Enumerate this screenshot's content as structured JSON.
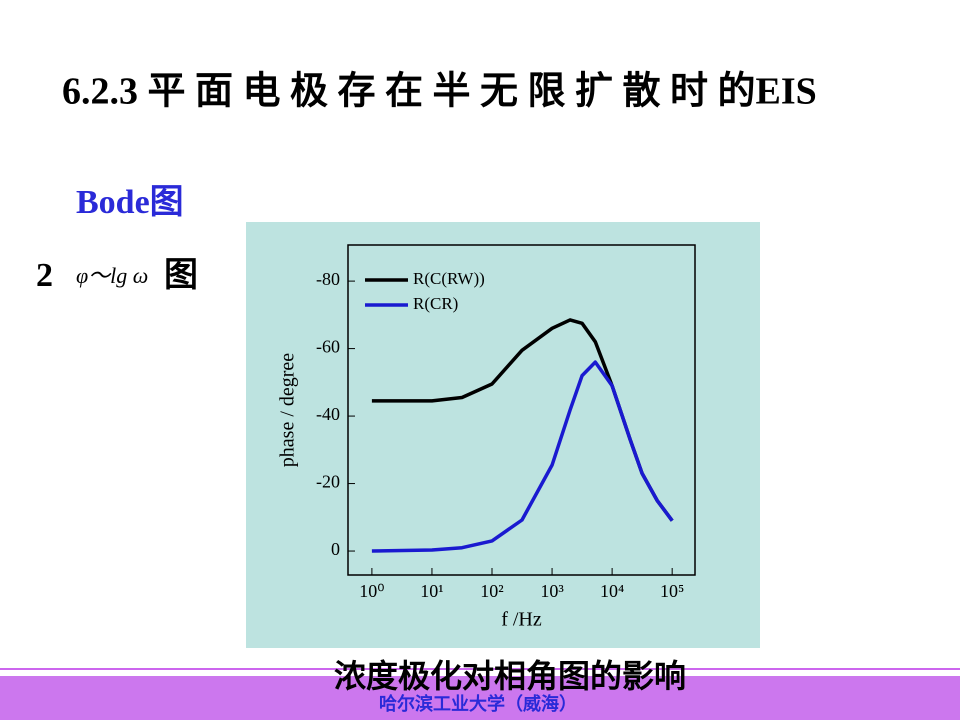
{
  "slide": {
    "title": "6.2.3 平 面 电 极 存 在 半 无 限 扩 散 时 的EIS",
    "subtitle": "Bode图",
    "item_number": "2",
    "item_formula": "φ～lg ω",
    "item_suffix": "图",
    "caption": "浓度极化对相角图的影响",
    "footer": "哈尔滨工业大学（威海）"
  },
  "chart_data": {
    "type": "line",
    "xlabel": "f /Hz",
    "ylabel": "phase / degree",
    "xscale": "log",
    "x": [
      1,
      10,
      31.6,
      100,
      316,
      1000,
      2000,
      3160,
      5250,
      10000,
      20000,
      31600,
      56200,
      100000
    ],
    "series": [
      {
        "name": "R(C(RW))",
        "color": "#000000",
        "values": [
          -44.5,
          -44.5,
          -45.5,
          -49.5,
          -59.5,
          -66,
          -68.5,
          -67.5,
          -62,
          -49,
          -33,
          -23,
          -15,
          -9
        ]
      },
      {
        "name": "R(CR)",
        "color": "#1a1ad0",
        "values": [
          0,
          -0.3,
          -1,
          -3,
          -9.2,
          -25.5,
          -41.8,
          -52,
          -56,
          -49,
          -33,
          -23,
          -15,
          -9
        ]
      }
    ],
    "xlim": [
      0.4,
      240000
    ],
    "xticks": [
      {
        "value": 1,
        "label": "10⁰"
      },
      {
        "value": 10,
        "label": "10¹"
      },
      {
        "value": 100,
        "label": "10²"
      },
      {
        "value": 1000,
        "label": "10³"
      },
      {
        "value": 10000,
        "label": "10⁴"
      },
      {
        "value": 100000,
        "label": "10⁵"
      }
    ],
    "ylim": [
      7.1,
      -90.7
    ],
    "yticks": [
      0,
      -20,
      -40,
      -60,
      -80
    ],
    "legend": "upper-left"
  }
}
